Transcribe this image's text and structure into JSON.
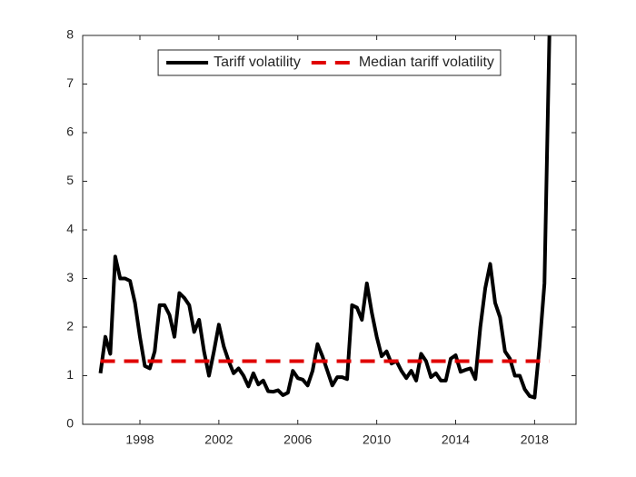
{
  "chart_data": {
    "type": "line",
    "x": [
      1996,
      1996.25,
      1996.5,
      1996.75,
      1997,
      1997.25,
      1997.5,
      1997.75,
      1998,
      1998.25,
      1998.5,
      1998.75,
      1999,
      1999.25,
      1999.5,
      1999.75,
      2000,
      2000.25,
      2000.5,
      2000.75,
      2001,
      2001.25,
      2001.5,
      2001.75,
      2002,
      2002.25,
      2002.5,
      2002.75,
      2003,
      2003.25,
      2003.5,
      2003.75,
      2004,
      2004.25,
      2004.5,
      2004.75,
      2005,
      2005.25,
      2005.5,
      2005.75,
      2006,
      2006.25,
      2006.5,
      2006.75,
      2007,
      2007.25,
      2007.5,
      2007.75,
      2008,
      2008.25,
      2008.5,
      2008.75,
      2009,
      2009.25,
      2009.5,
      2009.75,
      2010,
      2010.25,
      2010.5,
      2010.75,
      2011,
      2011.25,
      2011.5,
      2011.75,
      2012,
      2012.25,
      2012.5,
      2012.75,
      2013,
      2013.25,
      2013.5,
      2013.75,
      2014,
      2014.25,
      2014.5,
      2014.75,
      2015,
      2015.25,
      2015.5,
      2015.75,
      2016,
      2016.25,
      2016.5,
      2016.75,
      2017,
      2017.25,
      2017.5,
      2017.75,
      2018,
      2018.25,
      2018.5,
      2018.75
    ],
    "series": [
      {
        "name": "Tariff volatility",
        "color": "#000000",
        "values": [
          1.05,
          1.8,
          1.45,
          3.45,
          3.0,
          3.0,
          2.95,
          2.5,
          1.8,
          1.2,
          1.15,
          1.5,
          2.45,
          2.45,
          2.25,
          1.8,
          2.7,
          2.6,
          2.45,
          1.9,
          2.15,
          1.5,
          1.0,
          1.5,
          2.05,
          1.6,
          1.3,
          1.05,
          1.15,
          1.0,
          0.78,
          1.05,
          0.82,
          0.9,
          0.68,
          0.67,
          0.7,
          0.6,
          0.65,
          1.1,
          0.95,
          0.92,
          0.8,
          1.1,
          1.65,
          1.4,
          1.1,
          0.8,
          0.97,
          0.97,
          0.93,
          2.45,
          2.4,
          2.15,
          2.9,
          2.3,
          1.8,
          1.4,
          1.5,
          1.25,
          1.3,
          1.1,
          0.95,
          1.1,
          0.9,
          1.45,
          1.3,
          0.97,
          1.05,
          0.9,
          0.9,
          1.35,
          1.42,
          1.08,
          1.12,
          1.15,
          0.93,
          2.0,
          2.8,
          3.3,
          2.5,
          2.2,
          1.5,
          1.35,
          1.0,
          1.0,
          0.72,
          0.58,
          0.55,
          1.6,
          2.9,
          8
        ]
      },
      {
        "name": "Median tariff volatility",
        "color": "#e00000",
        "dashed": true,
        "x": [
          1996,
          2018.75
        ],
        "values": [
          1.3,
          1.3
        ]
      }
    ],
    "xlim": [
      1995.1,
      2020.1
    ],
    "xticks": [
      1998,
      2002,
      2006,
      2010,
      2014,
      2018
    ],
    "ylim": [
      0,
      8
    ],
    "yticks": [
      0,
      1,
      2,
      3,
      4,
      5,
      6,
      7,
      8
    ],
    "grid": false,
    "legend": "north"
  }
}
